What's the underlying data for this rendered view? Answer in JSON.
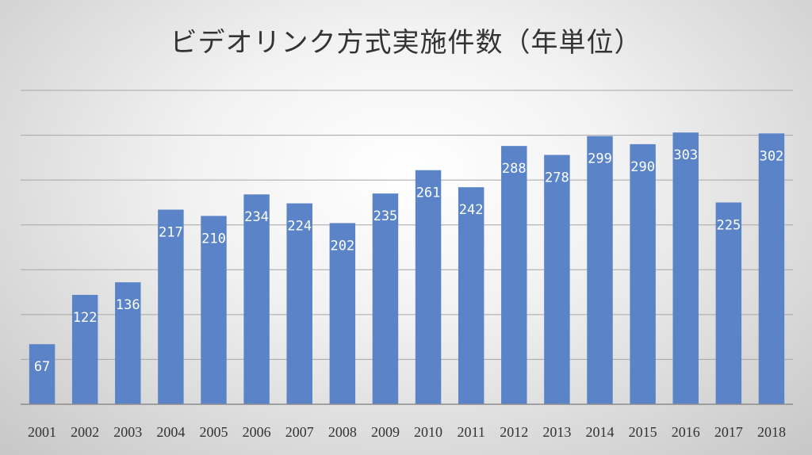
{
  "chart_data": {
    "type": "bar",
    "title": "ビデオリンク方式実施件数（年単位）",
    "xlabel": "",
    "ylabel": "",
    "categories": [
      "2001",
      "2002",
      "2003",
      "2004",
      "2005",
      "2006",
      "2007",
      "2008",
      "2009",
      "2010",
      "2011",
      "2012",
      "2013",
      "2014",
      "2015",
      "2016",
      "2017",
      "2018"
    ],
    "values": [
      67,
      122,
      136,
      217,
      210,
      234,
      224,
      202,
      235,
      261,
      242,
      288,
      278,
      299,
      290,
      303,
      225,
      302
    ],
    "ylim": [
      0,
      350
    ],
    "y_grid_step": 50,
    "grid": true,
    "y_tick_labels_shown": false,
    "legend": "none",
    "bar_color": "#5b84c8",
    "data_label_color": "#ffffff"
  }
}
